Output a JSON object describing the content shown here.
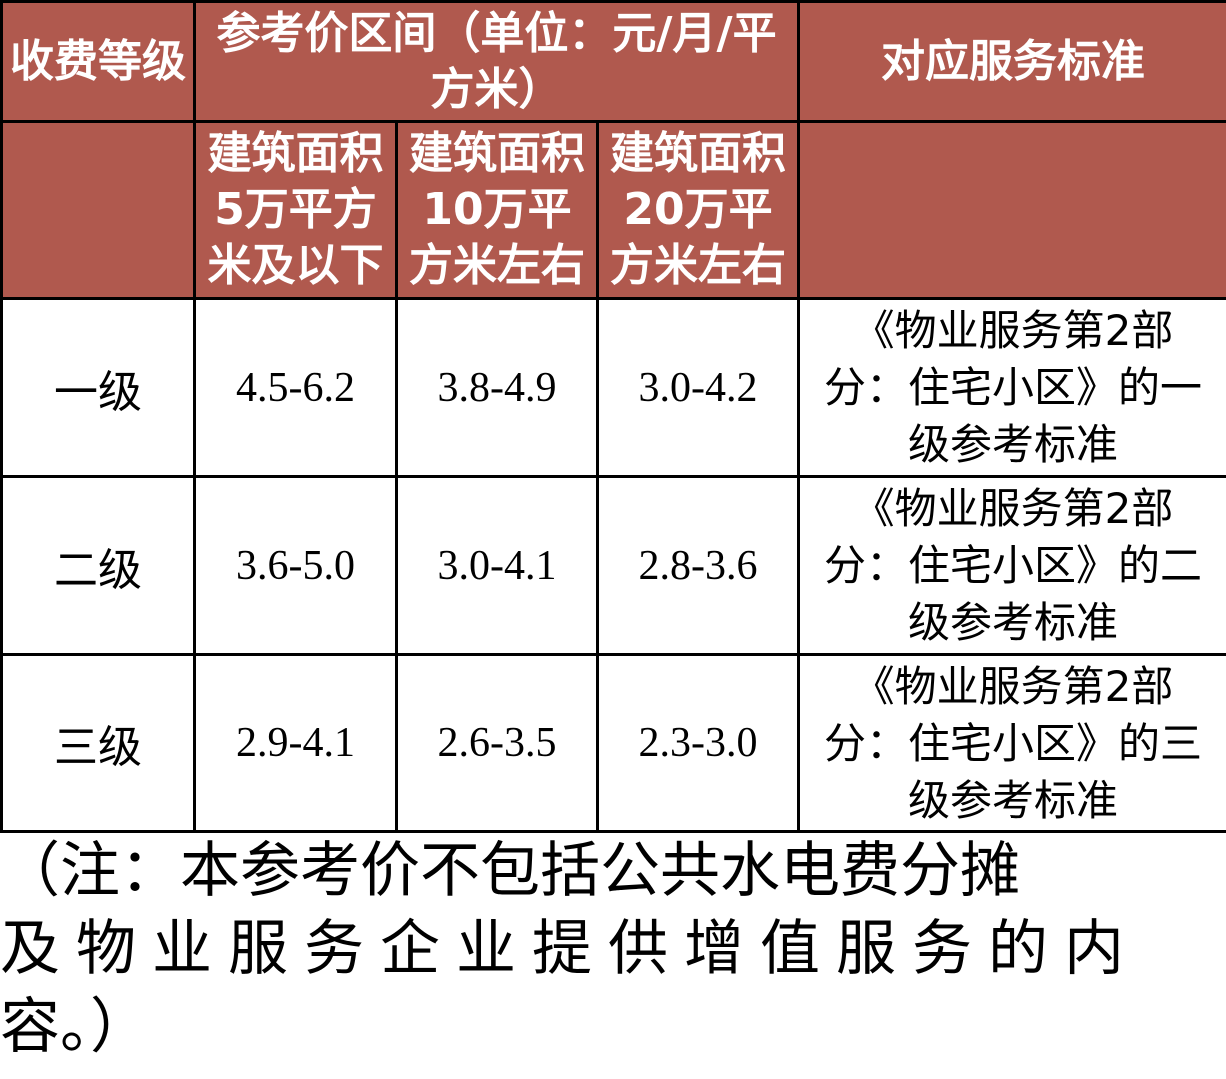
{
  "header": {
    "grade": "收费等级",
    "price_range": "参考价区间（单位：元/月/平方米）",
    "standard": "对应服务标准",
    "area_cols": [
      "建筑面积5万平方米及以下",
      "建筑面积10万平方米左右",
      "建筑面积20万平方米左右"
    ]
  },
  "rows": [
    {
      "grade": "一级",
      "p1": "4.5-6.2",
      "p2": "3.8-4.9",
      "p3": "3.0-4.2",
      "standard": "《物业服务第2部分：住宅小区》的一级参考标准"
    },
    {
      "grade": "二级",
      "p1": "3.6-5.0",
      "p2": "3.0-4.1",
      "p3": "2.8-3.6",
      "standard": "《物业服务第2部分：住宅小区》的二级参考标准"
    },
    {
      "grade": "三级",
      "p1": "2.9-4.1",
      "p2": "2.6-3.5",
      "p3": "2.3-3.0",
      "standard": "《物业服务第2部分：住宅小区》的三级参考标准"
    }
  ],
  "note": [
    "（注：本参考价不包括公共水电费分摊",
    "及物业服务企业提供增值服务的内",
    "容。）"
  ],
  "colors": {
    "header_bg": "#b0594e",
    "header_text": "#ffffff",
    "border": "#000000"
  }
}
